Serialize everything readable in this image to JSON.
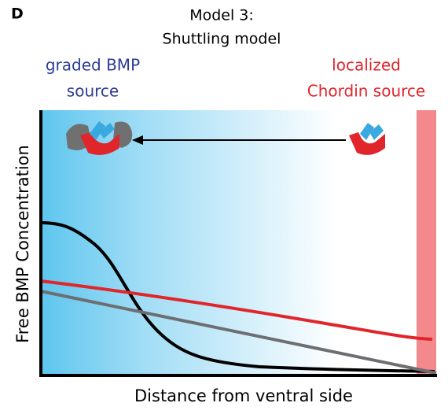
{
  "panel": {
    "letter": "D",
    "title_line1": "Model 3:",
    "title_line2": "Shuttling model"
  },
  "left_source": {
    "line1": "graded BMP",
    "line2": "source"
  },
  "right_source": {
    "line1": "localized",
    "line2": "Chordin source"
  },
  "axes": {
    "y_label": "Free BMP Concentration",
    "x_label": "Distance from ventral side"
  }
}
